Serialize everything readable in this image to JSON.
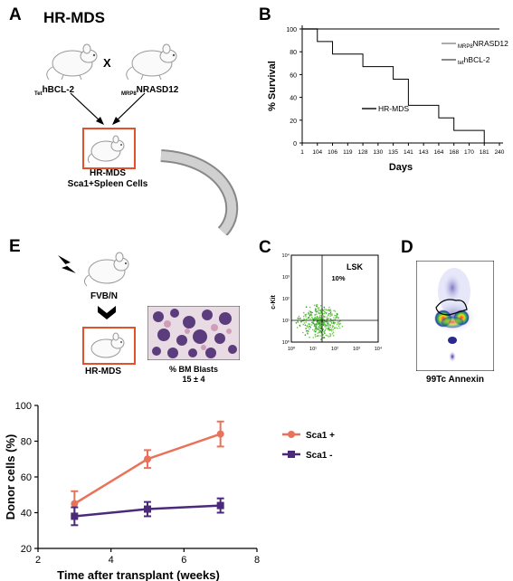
{
  "panels": {
    "a": {
      "letter": "A",
      "title": "HR-MDS",
      "cross": "X",
      "mouse_left": {
        "sub": "Tet",
        "name": "hBCL-2"
      },
      "mouse_right": {
        "sub": "MRP8",
        "name": "NRASD12"
      },
      "result_line1": "HR-MDS",
      "result_line2": "Sca1+Spleen Cells"
    },
    "b": {
      "letter": "B",
      "legend": [
        {
          "sub": "MRP8",
          "name": "NRASD12",
          "color": "#888888"
        },
        {
          "sub": "tet",
          "name": "hBCL-2",
          "color": "#555555"
        },
        {
          "sub": "",
          "name": "HR-MDS",
          "color": "#000000"
        }
      ]
    },
    "c": {
      "letter": "C",
      "ylabel": "c-Kit",
      "gate_label": "LSK",
      "percent": "10%"
    },
    "d": {
      "letter": "D",
      "caption": "99Tc Annexin"
    },
    "e": {
      "letter": "E",
      "recipient": "FVB/N",
      "result": "HR-MDS",
      "blasts_label": "% BM Blasts",
      "blasts_value": "15 ± 4"
    }
  },
  "chart_data": [
    {
      "type": "line",
      "panel": "B",
      "xlabel": "Days",
      "ylabel": "% Survival",
      "categories": [
        "1",
        "104",
        "106",
        "119",
        "128",
        "130",
        "135",
        "141",
        "143",
        "164",
        "168",
        "170",
        "181",
        "240"
      ],
      "ylim": [
        0,
        100
      ],
      "yticks": [
        0,
        20,
        40,
        60,
        80,
        100
      ],
      "series": [
        {
          "name": "MRP8 NRASD12",
          "values": [
            100,
            100,
            100,
            100,
            100,
            100,
            100,
            100,
            100,
            100,
            100,
            100,
            100,
            100
          ]
        },
        {
          "name": "tet hBCL-2",
          "values": [
            100,
            100,
            100,
            100,
            100,
            100,
            100,
            100,
            100,
            100,
            100,
            100,
            100,
            100
          ]
        },
        {
          "name": "HR-MDS",
          "values": [
            100,
            89,
            78,
            78,
            67,
            67,
            56,
            33,
            33,
            22,
            11,
            11,
            0,
            0
          ]
        }
      ]
    },
    {
      "type": "scatter",
      "panel": "C",
      "axes": "log",
      "xticks": [
        "10⁰",
        "10¹",
        "10²",
        "10³",
        "10⁴"
      ],
      "yticks": [
        "10⁰",
        "10¹",
        "10²",
        "10³",
        "10⁴"
      ]
    },
    {
      "type": "line",
      "panel": "E",
      "xlabel": "Time after transplant (weeks)",
      "ylabel": "Donor cells (%)",
      "xlim": [
        2,
        8
      ],
      "ylim": [
        20,
        100
      ],
      "xticks": [
        2,
        4,
        6,
        8
      ],
      "yticks": [
        20,
        40,
        60,
        80,
        100
      ],
      "series": [
        {
          "name": "Sca1 +",
          "color": "#e8735a",
          "x": [
            3,
            5,
            7
          ],
          "y": [
            45,
            70,
            84
          ],
          "err": [
            7,
            5,
            7
          ]
        },
        {
          "name": "Sca1 -",
          "color": "#4b2a7b",
          "x": [
            3,
            5,
            7
          ],
          "y": [
            38,
            42,
            44
          ],
          "err": [
            5,
            4,
            4
          ]
        }
      ]
    }
  ]
}
